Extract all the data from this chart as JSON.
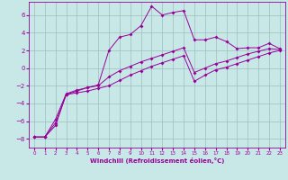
{
  "xlabel": "Windchill (Refroidissement éolien,°C)",
  "xlim": [
    -0.5,
    23.5
  ],
  "ylim": [
    -9.0,
    7.5
  ],
  "yticks": [
    -8,
    -6,
    -4,
    -2,
    0,
    2,
    4,
    6
  ],
  "xticks": [
    0,
    1,
    2,
    3,
    4,
    5,
    6,
    7,
    8,
    9,
    10,
    11,
    12,
    13,
    14,
    15,
    16,
    17,
    18,
    19,
    20,
    21,
    22,
    23
  ],
  "bg_color": "#c8e8e8",
  "line_color": "#990099",
  "grid_color": "#9dbcbc",
  "line1_y": [
    -7.8,
    -7.8,
    -6.5,
    -3.0,
    -2.6,
    -2.2,
    -1.9,
    2.0,
    3.5,
    3.8,
    4.8,
    7.0,
    6.0,
    6.3,
    6.5,
    3.2,
    3.2,
    3.5,
    3.0,
    2.2,
    2.3,
    2.3,
    2.8,
    2.2
  ],
  "line2_y": [
    -7.8,
    -7.8,
    -5.8,
    -2.9,
    -2.5,
    -2.2,
    -2.0,
    -1.0,
    -0.3,
    0.2,
    0.7,
    1.1,
    1.5,
    1.9,
    2.3,
    -0.5,
    0.0,
    0.5,
    0.8,
    1.2,
    1.6,
    1.9,
    2.2,
    2.1
  ],
  "line3_y": [
    -7.8,
    -7.8,
    -6.2,
    -3.0,
    -2.8,
    -2.6,
    -2.3,
    -2.0,
    -1.4,
    -0.8,
    -0.3,
    0.2,
    0.6,
    1.0,
    1.4,
    -1.5,
    -0.8,
    -0.2,
    0.1,
    0.5,
    0.9,
    1.3,
    1.7,
    2.0
  ]
}
